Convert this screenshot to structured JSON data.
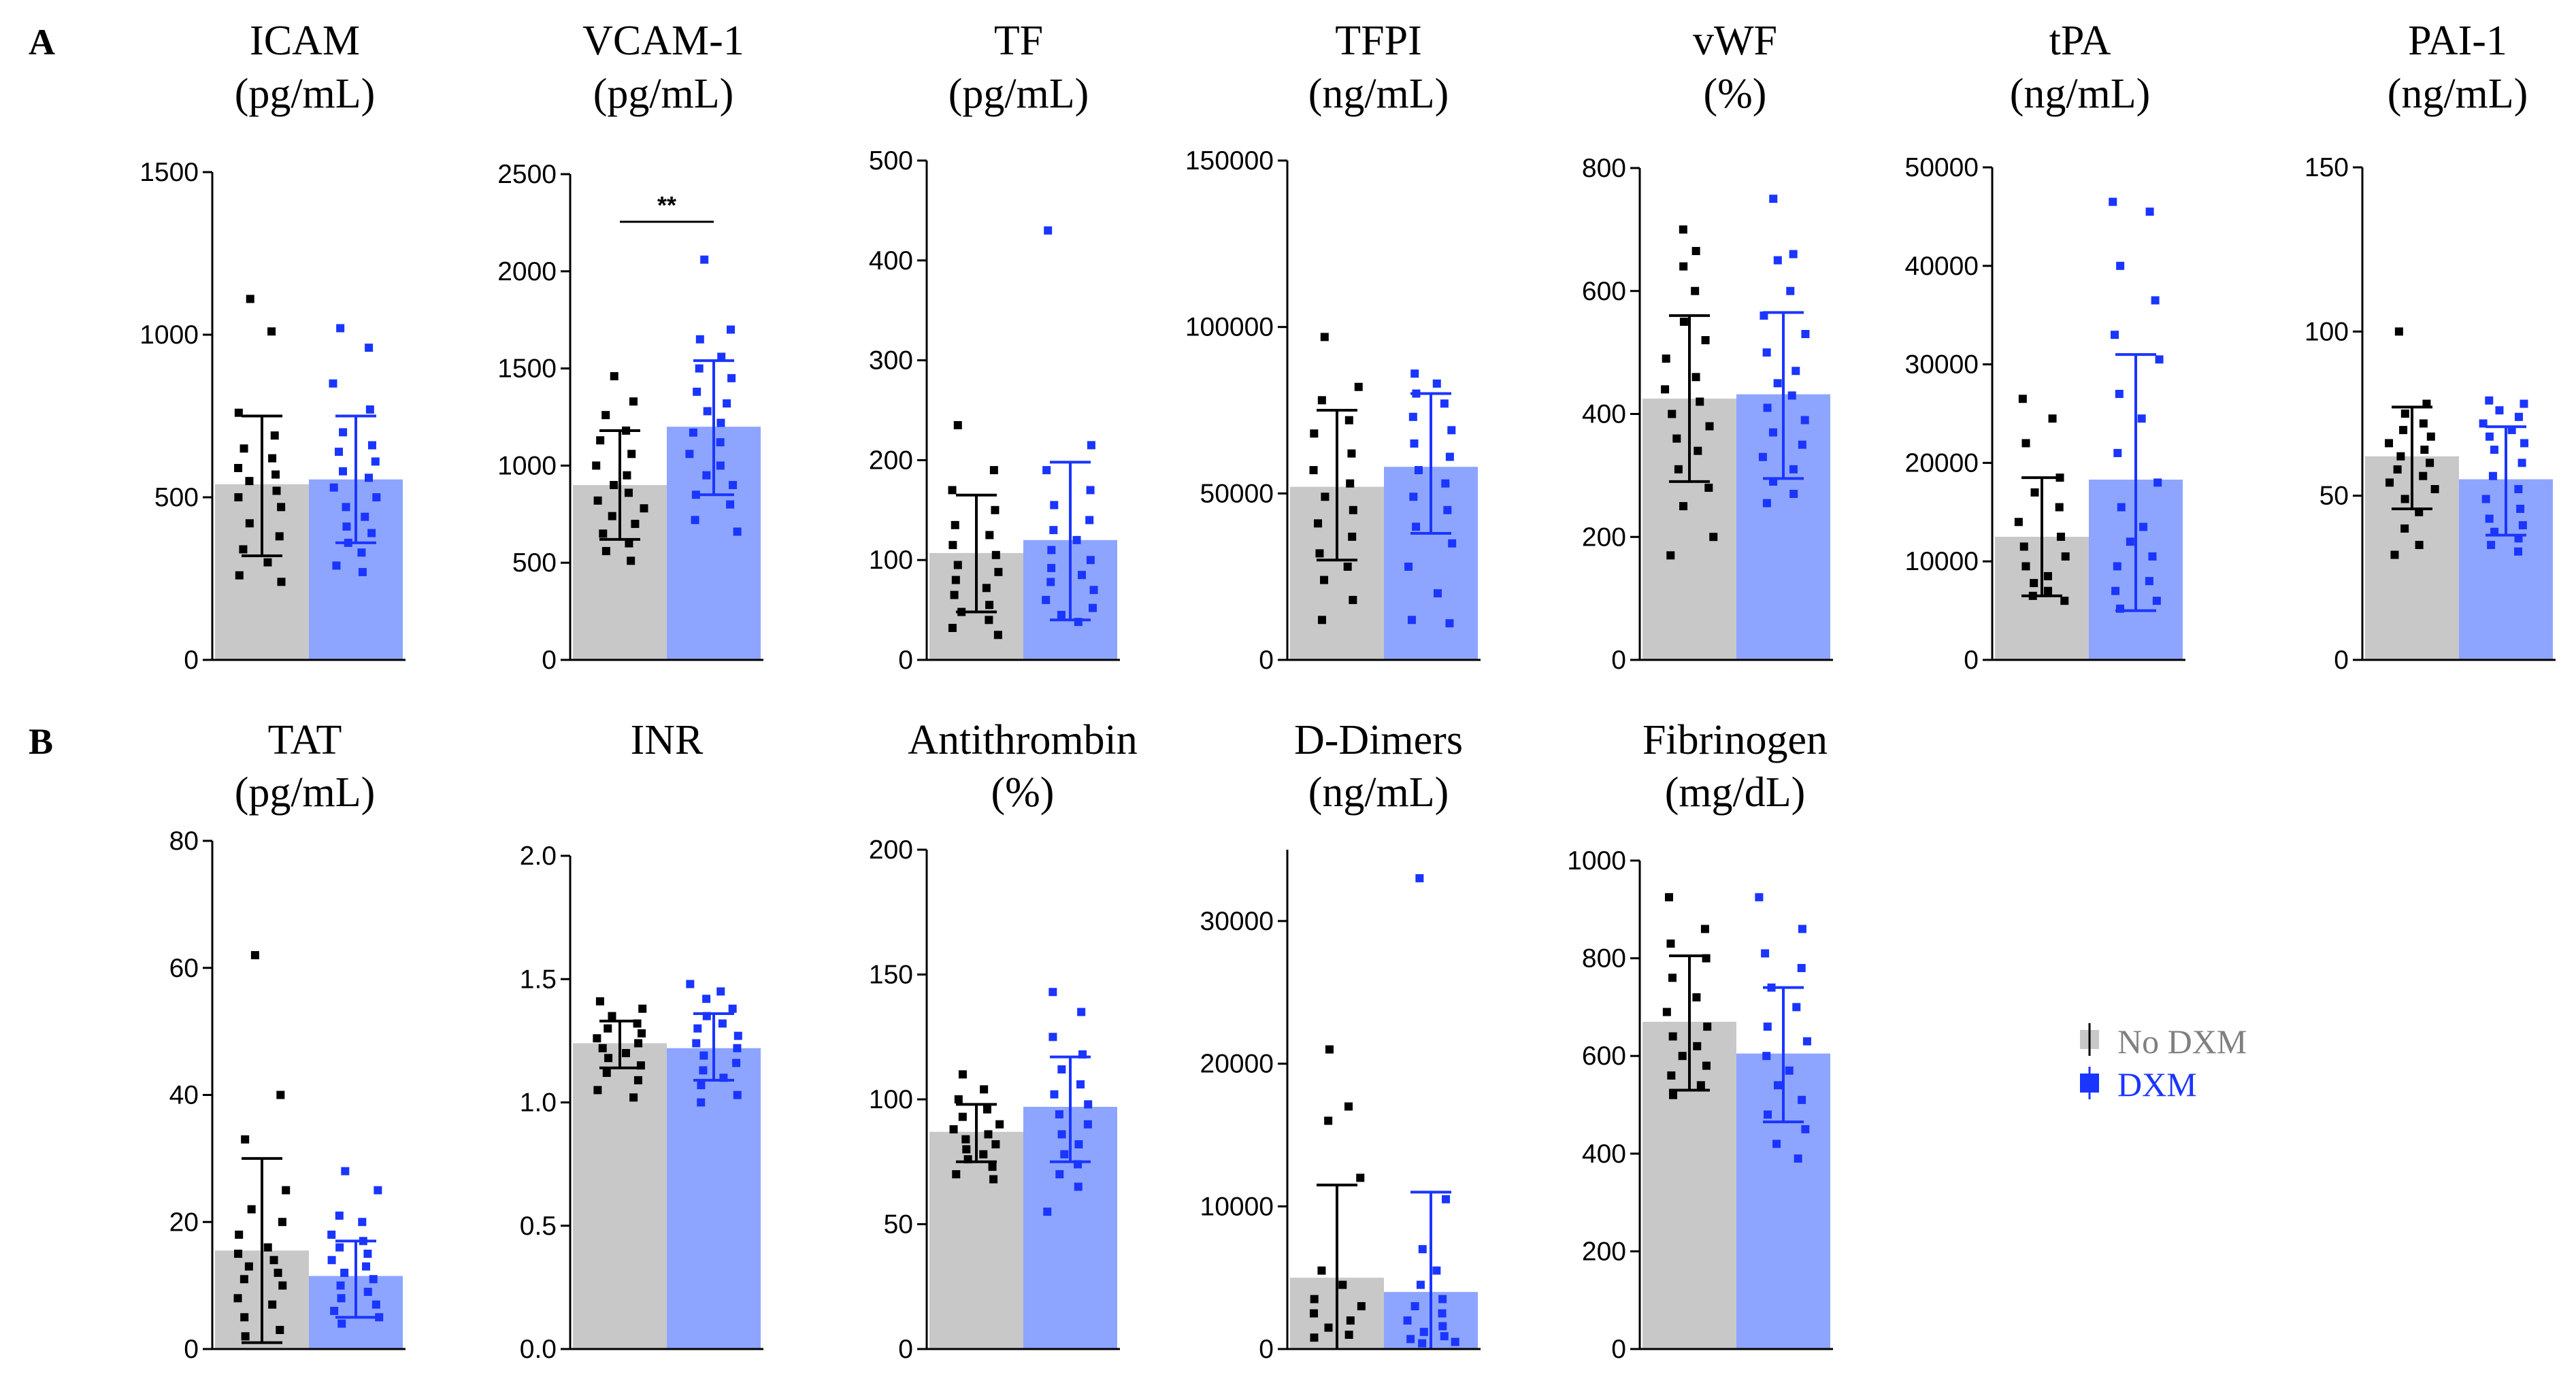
{
  "panel_labels": [
    "A",
    "B"
  ],
  "colors": {
    "no_dxm_bar": "#c8c8c8",
    "dxm_bar": "#8ea5ff",
    "no_dxm_point": "#000000",
    "dxm_point": "#1a35ff",
    "legend_no_dxm_text": "#808080",
    "legend_dxm_text": "#1a35ff"
  },
  "legend": {
    "no_dxm": "No DXM",
    "dxm": "DXM"
  },
  "chart_data": [
    {
      "type": "bar",
      "panel": "A",
      "title": "ICAM",
      "unit": "(pg/mL)",
      "ylim": [
        0,
        1500
      ],
      "ticks": [
        0,
        500,
        1000,
        1500
      ],
      "ticklabels": [
        "0",
        "500",
        "1000",
        "1500"
      ],
      "categories": [
        "No DXM",
        "DXM"
      ],
      "series": [
        {
          "name": "No DXM",
          "mean": 540,
          "sd_low": 320,
          "sd_high": 750,
          "points": [
            1110,
            1010,
            760,
            690,
            650,
            620,
            590,
            570,
            550,
            520,
            500,
            470,
            420,
            380,
            340,
            300,
            260,
            240
          ]
        },
        {
          "name": "DXM",
          "mean": 555,
          "sd_low": 360,
          "sd_high": 750,
          "points": [
            1020,
            960,
            850,
            770,
            700,
            660,
            640,
            610,
            580,
            560,
            530,
            500,
            470,
            440,
            410,
            390,
            360,
            330,
            290,
            270
          ]
        }
      ],
      "annotation": ""
    },
    {
      "type": "bar",
      "panel": "A",
      "title": "VCAM-1",
      "unit": "(pg/mL)",
      "ylim": [
        0,
        2500
      ],
      "ticks": [
        0,
        500,
        1000,
        1500,
        2000,
        2500
      ],
      "ticklabels": [
        "0",
        "500",
        "1000",
        "1500",
        "2000",
        "2500"
      ],
      "categories": [
        "No DXM",
        "DXM"
      ],
      "series": [
        {
          "name": "No DXM",
          "mean": 900,
          "sd_low": 620,
          "sd_high": 1180,
          "points": [
            1460,
            1330,
            1260,
            1180,
            1130,
            1060,
            1000,
            950,
            900,
            860,
            820,
            780,
            740,
            700,
            650,
            600,
            560,
            510
          ]
        },
        {
          "name": "DXM",
          "mean": 1200,
          "sd_low": 850,
          "sd_high": 1540,
          "points": [
            2060,
            1700,
            1650,
            1560,
            1500,
            1450,
            1380,
            1320,
            1280,
            1220,
            1170,
            1120,
            1060,
            1000,
            950,
            900,
            850,
            800,
            720,
            660
          ]
        }
      ],
      "annotation": "**"
    },
    {
      "type": "bar",
      "panel": "A",
      "title": "TF",
      "unit": "(pg/mL)",
      "ylim": [
        0,
        500
      ],
      "ticks": [
        0,
        100,
        200,
        300,
        400,
        500
      ],
      "ticklabels": [
        "0",
        "100",
        "200",
        "300",
        "400",
        "500"
      ],
      "categories": [
        "No DXM",
        "DXM"
      ],
      "series": [
        {
          "name": "No DXM",
          "mean": 107,
          "sd_low": 48,
          "sd_high": 165,
          "points": [
            235,
            190,
            170,
            150,
            135,
            125,
            115,
            105,
            95,
            88,
            80,
            72,
            65,
            55,
            48,
            40,
            32,
            25
          ]
        },
        {
          "name": "DXM",
          "mean": 120,
          "sd_low": 40,
          "sd_high": 198,
          "points": [
            430,
            215,
            190,
            170,
            155,
            140,
            130,
            120,
            110,
            100,
            92,
            85,
            78,
            70,
            60,
            52,
            45,
            38
          ]
        }
      ],
      "annotation": ""
    },
    {
      "type": "bar",
      "panel": "A",
      "title": "TFPI",
      "unit": "(ng/mL)",
      "ylim": [
        0,
        150000
      ],
      "ticks": [
        0,
        50000,
        100000,
        150000
      ],
      "ticklabels": [
        "0",
        "50000",
        "100000",
        "150000"
      ],
      "categories": [
        "No DXM",
        "DXM"
      ],
      "series": [
        {
          "name": "No DXM",
          "mean": 52000,
          "sd_low": 30000,
          "sd_high": 75000,
          "points": [
            97000,
            82000,
            78000,
            72000,
            68000,
            62000,
            57000,
            53000,
            49000,
            45000,
            41000,
            37000,
            32000,
            28000,
            24000,
            18000,
            12000
          ]
        },
        {
          "name": "DXM",
          "mean": 58000,
          "sd_low": 38000,
          "sd_high": 80000,
          "points": [
            86000,
            83000,
            80000,
            77000,
            73000,
            69000,
            65000,
            61000,
            57000,
            53000,
            49000,
            45000,
            40000,
            35000,
            28000,
            20000,
            12000,
            11000
          ]
        }
      ],
      "annotation": ""
    },
    {
      "type": "bar",
      "panel": "A",
      "title": "vWF",
      "unit": "(%)",
      "ylim": [
        0,
        800
      ],
      "ticks": [
        0,
        200,
        400,
        600,
        800
      ],
      "ticklabels": [
        "0",
        "200",
        "400",
        "600",
        "800"
      ],
      "categories": [
        "No DXM",
        "DXM"
      ],
      "series": [
        {
          "name": "No DXM",
          "mean": 425,
          "sd_low": 290,
          "sd_high": 560,
          "points": [
            700,
            665,
            640,
            600,
            550,
            520,
            490,
            460,
            440,
            420,
            400,
            380,
            360,
            340,
            310,
            280,
            250,
            200,
            170
          ]
        },
        {
          "name": "DXM",
          "mean": 432,
          "sd_low": 295,
          "sd_high": 565,
          "points": [
            750,
            660,
            650,
            600,
            560,
            530,
            500,
            470,
            450,
            430,
            410,
            390,
            370,
            350,
            330,
            310,
            290,
            270,
            255
          ]
        }
      ],
      "annotation": ""
    },
    {
      "type": "bar",
      "panel": "A",
      "title": "tPA",
      "unit": "(ng/mL)",
      "ylim": [
        0,
        50000
      ],
      "ticks": [
        0,
        10000,
        20000,
        30000,
        40000,
        50000
      ],
      "ticklabels": [
        "0",
        "10000",
        "20000",
        "30000",
        "40000",
        "50000"
      ],
      "categories": [
        "No DXM",
        "DXM"
      ],
      "series": [
        {
          "name": "No DXM",
          "mean": 12500,
          "sd_low": 6500,
          "sd_high": 18500,
          "points": [
            26500,
            24500,
            22000,
            18500,
            17000,
            15500,
            14000,
            12500,
            11500,
            10500,
            9500,
            8500,
            7800,
            7000,
            6500,
            6000
          ]
        },
        {
          "name": "DXM",
          "mean": 18300,
          "sd_low": 5000,
          "sd_high": 31000,
          "points": [
            46500,
            45500,
            40000,
            36500,
            33000,
            30500,
            27000,
            24500,
            21000,
            18000,
            15500,
            13500,
            12000,
            10500,
            9500,
            8000,
            7000,
            6000,
            5200
          ]
        }
      ],
      "annotation": ""
    },
    {
      "type": "bar",
      "panel": "A",
      "title": "PAI-1",
      "unit": "(ng/mL)",
      "ylim": [
        0,
        150
      ],
      "ticks": [
        0,
        50,
        100,
        150
      ],
      "ticklabels": [
        "0",
        "50",
        "100",
        "150"
      ],
      "categories": [
        "No DXM",
        "DXM"
      ],
      "series": [
        {
          "name": "No DXM",
          "mean": 62,
          "sd_low": 46,
          "sd_high": 77,
          "points": [
            100,
            78,
            75,
            72,
            70,
            68,
            66,
            64,
            62,
            60,
            58,
            56,
            54,
            52,
            49,
            45,
            40,
            35,
            32
          ]
        },
        {
          "name": "DXM",
          "mean": 55,
          "sd_low": 38,
          "sd_high": 71,
          "points": [
            79,
            78,
            76,
            74,
            72,
            70,
            68,
            66,
            64,
            60,
            56,
            52,
            49,
            46,
            43,
            41,
            39,
            37,
            35,
            33
          ]
        }
      ],
      "annotation": ""
    },
    {
      "type": "bar",
      "panel": "B",
      "title": "TAT",
      "unit": "(pg/mL)",
      "ylim": [
        0,
        80
      ],
      "ticks": [
        0,
        20,
        40,
        60,
        80
      ],
      "ticklabels": [
        "0",
        "20",
        "40",
        "60",
        "80"
      ],
      "categories": [
        "No DXM",
        "DXM"
      ],
      "series": [
        {
          "name": "No DXM",
          "mean": 15.5,
          "sd_low": 1,
          "sd_high": 30,
          "points": [
            62,
            40,
            33,
            25,
            22,
            20,
            18,
            16,
            15,
            14,
            13,
            12,
            11,
            10,
            8,
            7,
            5,
            3,
            2
          ]
        },
        {
          "name": "DXM",
          "mean": 11.5,
          "sd_low": 5,
          "sd_high": 17,
          "points": [
            28,
            25,
            21,
            20,
            18,
            17,
            16,
            15,
            14,
            13,
            12,
            11,
            10,
            9,
            8,
            7,
            6,
            5,
            4
          ]
        }
      ],
      "annotation": ""
    },
    {
      "type": "bar",
      "panel": "B",
      "title": "INR",
      "unit": "",
      "ylim": [
        0,
        2
      ],
      "ticks": [
        0,
        0.5,
        1,
        1.5,
        2
      ],
      "ticklabels": [
        "0.0",
        "0.5",
        "1.0",
        "1.5",
        "2.0"
      ],
      "categories": [
        "No DXM",
        "DXM"
      ],
      "series": [
        {
          "name": "No DXM",
          "mean": 1.24,
          "sd_low": 1.14,
          "sd_high": 1.33,
          "points": [
            1.41,
            1.38,
            1.35,
            1.32,
            1.3,
            1.28,
            1.26,
            1.24,
            1.22,
            1.2,
            1.18,
            1.15,
            1.12,
            1.09,
            1.05,
            1.02
          ]
        },
        {
          "name": "DXM",
          "mean": 1.22,
          "sd_low": 1.09,
          "sd_high": 1.36,
          "points": [
            1.48,
            1.45,
            1.42,
            1.38,
            1.35,
            1.32,
            1.3,
            1.27,
            1.24,
            1.22,
            1.19,
            1.16,
            1.13,
            1.1,
            1.07,
            1.03,
            1.0
          ]
        }
      ],
      "annotation": ""
    },
    {
      "type": "bar",
      "panel": "B",
      "title": "Antithrombin",
      "unit": "(%)",
      "ylim": [
        0,
        200
      ],
      "ticks": [
        0,
        50,
        100,
        150,
        200
      ],
      "ticklabels": [
        "0",
        "50",
        "100",
        "150",
        "200"
      ],
      "categories": [
        "No DXM",
        "DXM"
      ],
      "series": [
        {
          "name": "No DXM",
          "mean": 87,
          "sd_low": 75,
          "sd_high": 98,
          "points": [
            110,
            104,
            100,
            96,
            93,
            90,
            88,
            86,
            84,
            82,
            80,
            78,
            76,
            73,
            70,
            68
          ]
        },
        {
          "name": "DXM",
          "mean": 97,
          "sd_low": 75,
          "sd_high": 117,
          "points": [
            143,
            135,
            125,
            118,
            112,
            106,
            102,
            98,
            94,
            90,
            86,
            82,
            78,
            74,
            70,
            65,
            55
          ]
        }
      ],
      "annotation": ""
    },
    {
      "type": "bar",
      "panel": "B",
      "title": "D-Dimers",
      "unit": "(ng/mL)",
      "ylim": [
        0,
        35000
      ],
      "ticks": [
        0,
        10000,
        20000,
        30000
      ],
      "ticklabels": [
        "0",
        "10000",
        "20000",
        "30000"
      ],
      "categories": [
        "No DXM",
        "DXM"
      ],
      "series": [
        {
          "name": "No DXM",
          "mean": 5000,
          "sd_low": 0,
          "sd_high": 11500,
          "points": [
            21000,
            17000,
            16000,
            12000,
            5500,
            4500,
            3500,
            3000,
            2500,
            2000,
            1500,
            1000,
            800
          ]
        },
        {
          "name": "DXM",
          "mean": 4000,
          "sd_low": 0,
          "sd_high": 11000,
          "points": [
            33000,
            10500,
            7000,
            5500,
            4500,
            3500,
            3000,
            2500,
            2000,
            1600,
            1200,
            900,
            700,
            500,
            400
          ]
        }
      ],
      "annotation": ""
    },
    {
      "type": "bar",
      "panel": "B",
      "title": "Fibrinogen",
      "unit": "(mg/dL)",
      "ylim": [
        0,
        1000
      ],
      "ticks": [
        0,
        200,
        400,
        600,
        800,
        1000
      ],
      "ticklabels": [
        "0",
        "200",
        "400",
        "600",
        "800",
        "1000"
      ],
      "categories": [
        "No DXM",
        "DXM"
      ],
      "series": [
        {
          "name": "No DXM",
          "mean": 670,
          "sd_low": 530,
          "sd_high": 805,
          "points": [
            925,
            860,
            830,
            800,
            760,
            720,
            690,
            660,
            640,
            620,
            600,
            580,
            560,
            540,
            520
          ]
        },
        {
          "name": "DXM",
          "mean": 605,
          "sd_low": 465,
          "sd_high": 740,
          "points": [
            925,
            860,
            810,
            780,
            740,
            700,
            660,
            630,
            600,
            570,
            540,
            510,
            480,
            450,
            420,
            390
          ]
        }
      ],
      "annotation": ""
    }
  ]
}
